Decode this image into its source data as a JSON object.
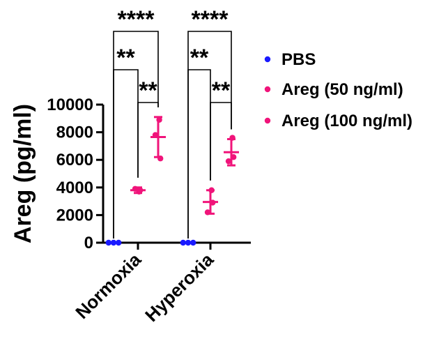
{
  "chart_data": {
    "type": "scatter",
    "ylabel": "Areg (pg/ml)",
    "ylim": [
      0,
      10000
    ],
    "y_ticks": [
      "0",
      "2000",
      "4000",
      "6000",
      "8000",
      "10000"
    ],
    "categories": [
      "Normoxia",
      "Hyperoxia"
    ],
    "series": [
      {
        "name": "PBS",
        "color": "#1a1aff",
        "groups": [
          {
            "category": "Normoxia",
            "points": [
              0,
              0,
              0
            ],
            "mean": 0,
            "sd": 0
          },
          {
            "category": "Hyperoxia",
            "points": [
              0,
              0,
              0
            ],
            "mean": 0,
            "sd": 0
          }
        ]
      },
      {
        "name": "Areg (50 ng/ml)",
        "color": "#f0147a",
        "groups": [
          {
            "category": "Normoxia",
            "points": [
              3700,
              3900,
              3800
            ],
            "mean": 3800,
            "sd": 200
          },
          {
            "category": "Hyperoxia",
            "points": [
              3800,
              2200,
              2900
            ],
            "mean": 2950,
            "sd": 850
          }
        ]
      },
      {
        "name": "Areg (100 ng/ml)",
        "color": "#f0147a",
        "groups": [
          {
            "category": "Normoxia",
            "points": [
              8900,
              7800,
              6100
            ],
            "mean": 7650,
            "sd": 1450
          },
          {
            "category": "Hyperoxia",
            "points": [
              7600,
              5900,
              6200
            ],
            "mean": 6550,
            "sd": 950
          }
        ]
      }
    ],
    "significance": [
      {
        "category": "Normoxia",
        "from": "PBS",
        "to": "Areg (50 ng/ml)",
        "label": "**"
      },
      {
        "category": "Normoxia",
        "from": "Areg (50 ng/ml)",
        "to": "Areg (100 ng/ml)",
        "label": "**"
      },
      {
        "category": "Normoxia",
        "from": "PBS",
        "to": "Areg (100 ng/ml)",
        "label": "****"
      },
      {
        "category": "Hyperoxia",
        "from": "PBS",
        "to": "Areg (50 ng/ml)",
        "label": "**"
      },
      {
        "category": "Hyperoxia",
        "from": "Areg (50 ng/ml)",
        "to": "Areg (100 ng/ml)",
        "label": "**"
      },
      {
        "category": "Hyperoxia",
        "from": "PBS",
        "to": "Areg (100 ng/ml)",
        "label": "****"
      }
    ],
    "legend_position": "right",
    "grid": false
  }
}
